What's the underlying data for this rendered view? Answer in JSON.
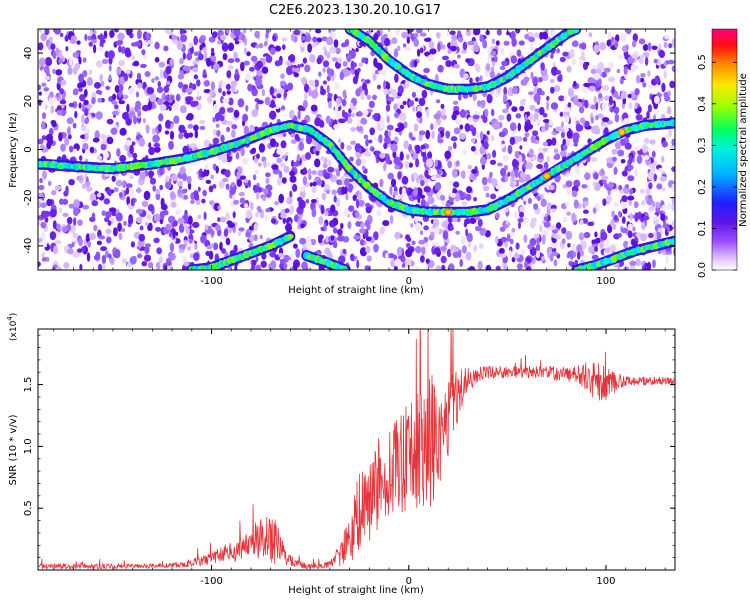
{
  "title": "C2E6.2023.130.20.10.G17",
  "chart_data": [
    {
      "type": "heatmap",
      "xlabel": "Height of straight line (km)",
      "ylabel": "Frequency (Hz)",
      "xlim": [
        -188,
        135
      ],
      "ylim": [
        -50,
        50
      ],
      "xticks": [
        -100,
        0,
        100
      ],
      "yticks": [
        -40,
        -20,
        0,
        20,
        40
      ],
      "colorbar": {
        "label": "Normalized spectral amplitude",
        "range": [
          0.0,
          0.58
        ],
        "ticks": [
          0.0,
          0.1,
          0.2,
          0.3,
          0.4,
          0.5
        ],
        "colormap": "hsv",
        "low_color": "#ffffff",
        "high_color": "#ff0080"
      },
      "tracks": [
        {
          "description": "main frequency track",
          "x": [
            -188,
            -170,
            -150,
            -130,
            -115,
            -100,
            -85,
            -70,
            -60,
            -50,
            -40,
            -30,
            -20,
            -10,
            0,
            10,
            20,
            30,
            40,
            50,
            60,
            70,
            80,
            90,
            100,
            110,
            120,
            135
          ],
          "y": [
            -6,
            -7,
            -8,
            -6,
            -4,
            -1,
            3,
            8,
            10,
            8,
            2,
            -8,
            -16,
            -22,
            -25,
            -26,
            -26,
            -26,
            -25,
            -21,
            -16,
            -11,
            -6,
            -1,
            4,
            8,
            10,
            11
          ]
        },
        {
          "description": "upper track",
          "x": [
            -30,
            -20,
            -10,
            0,
            10,
            20,
            30,
            40,
            50,
            60,
            70,
            80,
            85
          ],
          "y": [
            50,
            45,
            37,
            31,
            27,
            25,
            25,
            26,
            30,
            36,
            42,
            48,
            50
          ]
        },
        {
          "description": "lower left track",
          "x": [
            -110,
            -100,
            -90,
            -80,
            -70,
            -60
          ],
          "y": [
            -50,
            -49,
            -46,
            -43,
            -40,
            -36
          ]
        },
        {
          "description": "lower right track",
          "x": [
            85,
            95,
            105,
            115,
            125,
            135
          ],
          "y": [
            -50,
            -48,
            -45,
            -42,
            -40,
            -38
          ]
        },
        {
          "description": "short lower track",
          "x": [
            -52,
            -45,
            -38,
            -32
          ],
          "y": [
            -44,
            -46,
            -48,
            -50
          ]
        }
      ]
    },
    {
      "type": "line",
      "xlabel": "Height of straight line (km)",
      "ylabel": "SNR (10 * v/v)",
      "yscale_label": "(x10",
      "yscale_exponent": "4",
      "yscale_suffix": ")",
      "xlim": [
        -188,
        135
      ],
      "ylim": [
        0,
        19500
      ],
      "xticks": [
        -100,
        0,
        100
      ],
      "yticks": [
        5000,
        10000,
        15000
      ],
      "ytick_labels": [
        "0.5",
        "1.0",
        "1.5"
      ],
      "color": "#e8343a",
      "envelope": {
        "x": [
          -188,
          -150,
          -120,
          -105,
          -95,
          -85,
          -78,
          -72,
          -67,
          -62,
          -55,
          -50,
          -45,
          -40,
          -35,
          -30,
          -27,
          -22,
          -15,
          -10,
          -5,
          0,
          5,
          10,
          15,
          20,
          25,
          30,
          40,
          50,
          60,
          70,
          80,
          90,
          95,
          100,
          105,
          110,
          120,
          135
        ],
        "mean": [
          300,
          300,
          350,
          700,
          1200,
          1800,
          2400,
          2600,
          2200,
          800,
          400,
          300,
          300,
          500,
          1200,
          2500,
          4000,
          5500,
          7000,
          7800,
          8500,
          9000,
          9500,
          10200,
          11000,
          12500,
          14200,
          15500,
          16000,
          16000,
          16000,
          16000,
          15800,
          15600,
          15300,
          15000,
          15200,
          15300,
          15300,
          15300
        ],
        "spread": [
          200,
          200,
          200,
          400,
          700,
          1000,
          1400,
          2000,
          1800,
          600,
          300,
          200,
          200,
          400,
          1000,
          2200,
          3000,
          3500,
          3800,
          4000,
          4200,
          4500,
          5000,
          5500,
          5000,
          3500,
          2000,
          1000,
          500,
          500,
          500,
          500,
          600,
          1200,
          1600,
          1400,
          800,
          400,
          350,
          300
        ]
      }
    }
  ]
}
